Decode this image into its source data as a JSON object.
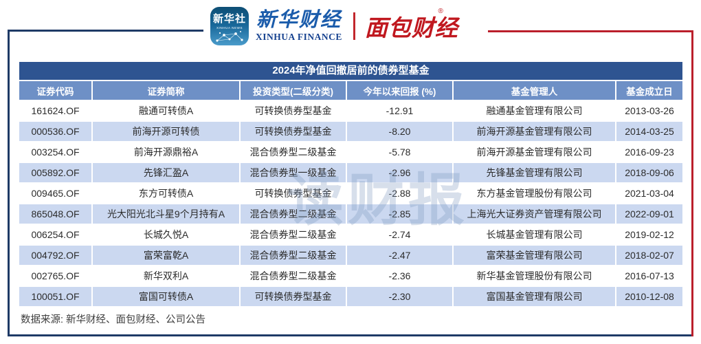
{
  "chart_data": {
    "type": "table",
    "title": "2024年净值回撤居前的债券型基金",
    "columns": [
      "证券代码",
      "证券简称",
      "投资类型(二级分类)",
      "今年以来回报 (%)",
      "基金管理人",
      "基金成立日"
    ],
    "rows": [
      [
        "161624.OF",
        "融通可转债A",
        "可转换债券型基金",
        "-12.91",
        "融通基金管理有限公司",
        "2013-03-26"
      ],
      [
        "000536.OF",
        "前海开源可转债",
        "可转换债券型基金",
        "-8.20",
        "前海开源基金管理有限公司",
        "2014-03-25"
      ],
      [
        "003254.OF",
        "前海开源鼎裕A",
        "混合债券型二级基金",
        "-5.78",
        "前海开源基金管理有限公司",
        "2016-09-23"
      ],
      [
        "005892.OF",
        "先锋汇盈A",
        "混合债券型一级基金",
        "-2.96",
        "先锋基金管理有限公司",
        "2018-09-06"
      ],
      [
        "009465.OF",
        "东方可转债A",
        "可转换债券型基金",
        "-2.88",
        "东方基金管理股份有限公司",
        "2021-03-04"
      ],
      [
        "865048.OF",
        "光大阳光北斗星9个月持有A",
        "混合债券型二级基金",
        "-2.85",
        "上海光大证券资产管理有限公司",
        "2022-09-01"
      ],
      [
        "006254.OF",
        "长城久悦A",
        "混合债券型二级基金",
        "-2.74",
        "长城基金管理有限公司",
        "2019-02-12"
      ],
      [
        "004792.OF",
        "富荣富乾A",
        "混合债券型二级基金",
        "-2.47",
        "富荣基金管理有限公司",
        "2018-02-07"
      ],
      [
        "002765.OF",
        "新华双利A",
        "混合债券型二级基金",
        "-2.36",
        "新华基金管理股份有限公司",
        "2016-07-13"
      ],
      [
        "100051.OF",
        "富国可转债A",
        "可转换债券型基金",
        "-2.30",
        "富国基金管理有限公司",
        "2010-12-08"
      ]
    ],
    "source_note": "数据来源: 新华财经、面包财经、公司公告",
    "layout_hints": {
      "alternating_rows": true,
      "header_position": "top"
    }
  },
  "header_logos": {
    "xinhua_news": {
      "cn": "新华社",
      "en": "XINHUA NEWS"
    },
    "xinhua_finance": {
      "cn": "新华财经",
      "en": "XINHUA FINANCE"
    },
    "bread_finance": {
      "cn": "面包财经",
      "reg": "®"
    }
  },
  "watermark": "读财报",
  "colors": {
    "frame_navy": "#1e3a66",
    "frame_red": "#bb1f2b",
    "title_bg": "#2e5491",
    "header_bg": "#6e90c6",
    "row_bg": "#ffffff",
    "row_alt_bg": "#cbd8f0",
    "xinhua_blue": "#1b5cab",
    "bread_red": "#c0181f"
  }
}
